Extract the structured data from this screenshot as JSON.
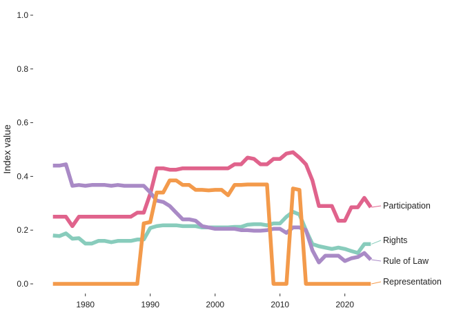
{
  "chart_data": {
    "type": "line",
    "title": "",
    "xlabel": "",
    "ylabel": "Index value",
    "xlim": [
      1974.5,
      2024.5
    ],
    "ylim": [
      0.0,
      1.0
    ],
    "x_ticks": [
      1980,
      1990,
      2000,
      2010,
      2020
    ],
    "y_ticks": [
      "0.0",
      "0.2",
      "0.4",
      "0.6",
      "0.8",
      "1.0"
    ],
    "grid": false,
    "legend": "direct labels at right end of each line",
    "x": [
      1975,
      1976,
      1977,
      1978,
      1979,
      1980,
      1981,
      1982,
      1983,
      1984,
      1985,
      1986,
      1987,
      1988,
      1989,
      1990,
      1991,
      1992,
      1993,
      1994,
      1995,
      1996,
      1997,
      1998,
      1999,
      2000,
      2001,
      2002,
      2003,
      2004,
      2005,
      2006,
      2007,
      2008,
      2009,
      2010,
      2011,
      2012,
      2013,
      2014,
      2015,
      2016,
      2017,
      2018,
      2019,
      2020,
      2021,
      2022,
      2023,
      2024
    ],
    "series": [
      {
        "name": "Participation",
        "color": "#e0638c",
        "values": [
          0.25,
          0.25,
          0.25,
          0.215,
          0.25,
          0.25,
          0.25,
          0.25,
          0.25,
          0.25,
          0.25,
          0.25,
          0.25,
          0.265,
          0.265,
          0.335,
          0.43,
          0.43,
          0.425,
          0.425,
          0.43,
          0.43,
          0.43,
          0.43,
          0.43,
          0.43,
          0.43,
          0.43,
          0.445,
          0.445,
          0.47,
          0.465,
          0.445,
          0.445,
          0.465,
          0.465,
          0.485,
          0.49,
          0.47,
          0.445,
          0.385,
          0.29,
          0.29,
          0.29,
          0.235,
          0.235,
          0.285,
          0.285,
          0.32,
          0.285
        ]
      },
      {
        "name": "Rights",
        "color": "#88ccbc",
        "values": [
          0.18,
          0.178,
          0.188,
          0.168,
          0.17,
          0.15,
          0.15,
          0.16,
          0.16,
          0.155,
          0.16,
          0.16,
          0.16,
          0.165,
          0.165,
          0.208,
          0.215,
          0.218,
          0.218,
          0.218,
          0.215,
          0.215,
          0.215,
          0.21,
          0.21,
          0.21,
          0.21,
          0.21,
          0.212,
          0.212,
          0.22,
          0.222,
          0.222,
          0.218,
          0.225,
          0.225,
          0.25,
          0.268,
          0.258,
          0.2,
          0.148,
          0.14,
          0.135,
          0.13,
          0.135,
          0.13,
          0.122,
          0.115,
          0.148,
          0.148
        ]
      },
      {
        "name": "Rule of Law",
        "color": "#a98ac6",
        "values": [
          0.44,
          0.44,
          0.445,
          0.365,
          0.368,
          0.365,
          0.368,
          0.368,
          0.368,
          0.365,
          0.368,
          0.365,
          0.365,
          0.365,
          0.365,
          0.34,
          0.31,
          0.305,
          0.29,
          0.265,
          0.24,
          0.24,
          0.235,
          0.215,
          0.21,
          0.205,
          0.205,
          0.205,
          0.205,
          0.2,
          0.2,
          0.198,
          0.198,
          0.2,
          0.205,
          0.205,
          0.19,
          0.21,
          0.21,
          0.2,
          0.125,
          0.08,
          0.105,
          0.105,
          0.105,
          0.085,
          0.095,
          0.1,
          0.115,
          0.09
        ]
      },
      {
        "name": "Representation",
        "color": "#f39a4b",
        "values": [
          0,
          0,
          0,
          0,
          0,
          0,
          0,
          0,
          0,
          0,
          0,
          0,
          0,
          0,
          0.225,
          0.23,
          0.34,
          0.34,
          0.385,
          0.385,
          0.368,
          0.368,
          0.35,
          0.35,
          0.348,
          0.35,
          0.35,
          0.33,
          0.368,
          0.368,
          0.37,
          0.37,
          0.37,
          0.37,
          0,
          0,
          0,
          0.355,
          0.35,
          0,
          0,
          0,
          0,
          0,
          0,
          0,
          0,
          0,
          0,
          0
        ]
      }
    ]
  }
}
